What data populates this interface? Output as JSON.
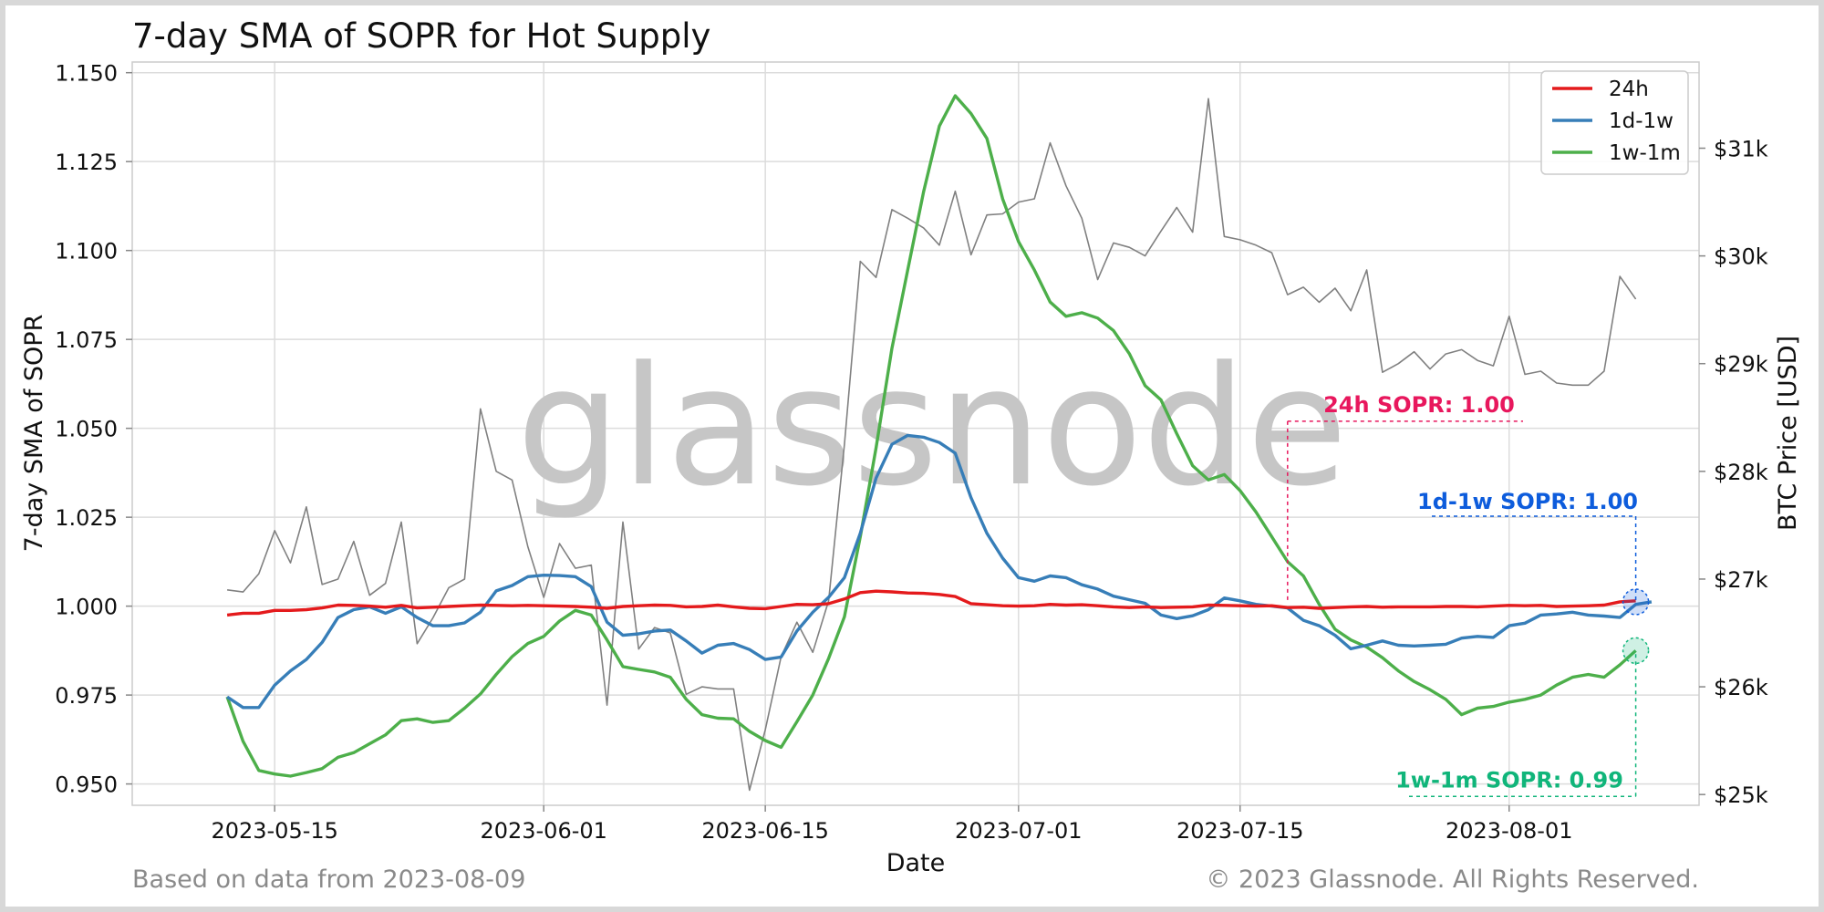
{
  "title": "7-day SMA of SOPR for Hot Supply",
  "footer_left": "Based on data from 2023-08-09",
  "footer_right": "© 2023 Glassnode. All Rights Reserved.",
  "watermark": "glassnode",
  "colors": {
    "s24h": "#e41a1c",
    "s1d1w": "#377eb8",
    "s1w1m": "#4daf4a",
    "price": "#808080",
    "annot24h": "#e8175d",
    "annot1d1w": "#0d5cdc",
    "annot1w1m": "#10b57a"
  },
  "chart_data": {
    "type": "line",
    "xlabel": "Date",
    "ylabel": "7-day SMA of SOPR",
    "ylabel_right": "BTC Price [USD]",
    "x_range": [
      "2023-05-06",
      "2023-08-13"
    ],
    "ylim": [
      0.944,
      1.153
    ],
    "ylim_right": [
      24900,
      31800
    ],
    "x_ticks": [
      "2023-05-15",
      "2023-06-01",
      "2023-06-15",
      "2023-07-01",
      "2023-07-15",
      "2023-08-01"
    ],
    "y_ticks": [
      "0.950",
      "0.975",
      "1.000",
      "1.025",
      "1.050",
      "1.075",
      "1.100",
      "1.125",
      "1.150"
    ],
    "y_right_ticks": [
      {
        "value": 25000,
        "label": "$25k"
      },
      {
        "value": 26000,
        "label": "$26k"
      },
      {
        "value": 27000,
        "label": "$27k"
      },
      {
        "value": 28000,
        "label": "$28k"
      },
      {
        "value": 29000,
        "label": "$29k"
      },
      {
        "value": 30000,
        "label": "$30k"
      },
      {
        "value": 31000,
        "label": "$31k"
      }
    ],
    "grid": true,
    "legend_position": "top-right",
    "start_date": "2023-05-12",
    "series": [
      {
        "name": "24h",
        "color": "#e41a1c",
        "axis": "left",
        "values": [
          0.9975,
          0.998,
          0.998,
          0.9988,
          0.9988,
          0.999,
          0.9995,
          1.0003,
          1.0002,
          1.0,
          0.9997,
          1.0002,
          0.9995,
          0.9997,
          0.9999,
          1.0001,
          1.0003,
          1.0002,
          1.0001,
          1.0002,
          1.0001,
          1.0,
          0.9999,
          0.9997,
          0.9994,
          0.9999,
          1.0001,
          1.0003,
          1.0002,
          0.9998,
          0.9999,
          1.0003,
          0.9998,
          0.9994,
          0.9993,
          0.9999,
          1.0005,
          1.0004,
          1.0007,
          1.002,
          1.0038,
          1.0042,
          1.004,
          1.0037,
          1.0036,
          1.0033,
          1.0027,
          1.0007,
          1.0004,
          1.0001,
          1.0,
          1.0001,
          1.0005,
          1.0003,
          1.0004,
          1.0001,
          0.9998,
          0.9996,
          0.9998,
          0.9996,
          0.9997,
          0.9998,
          1.0003,
          1.0002,
          1.0001,
          1.0,
          1.0001,
          0.9996,
          0.9997,
          0.9994,
          0.9996,
          0.9998,
          0.9999,
          0.9997,
          0.9998,
          0.9998,
          0.9998,
          0.9999,
          0.9999,
          0.9998,
          1.0,
          1.0002,
          1.0001,
          1.0002,
          0.9999,
          1.0,
          1.0001,
          1.0003,
          1.0012,
          1.0015
        ]
      },
      {
        "name": "1d-1w",
        "color": "#377eb8",
        "axis": "left",
        "values": [
          0.9745,
          0.9715,
          0.9715,
          0.9778,
          0.9818,
          0.985,
          0.9898,
          0.9968,
          0.999,
          0.9998,
          0.998,
          0.9998,
          0.9968,
          0.9945,
          0.9945,
          0.9953,
          0.9983,
          1.0043,
          1.0058,
          1.0083,
          1.0087,
          1.0086,
          1.0083,
          1.0055,
          0.9955,
          0.9918,
          0.9922,
          0.993,
          0.9933,
          0.9902,
          0.9868,
          0.989,
          0.9895,
          0.9878,
          0.985,
          0.9857,
          0.993,
          0.9983,
          1.0025,
          1.008,
          1.0205,
          1.036,
          1.0455,
          1.048,
          1.0475,
          1.046,
          1.043,
          1.0305,
          1.0205,
          1.0135,
          1.008,
          1.007,
          1.0085,
          1.008,
          1.006,
          1.0048,
          1.0028,
          1.0018,
          1.0008,
          0.9975,
          0.9965,
          0.9973,
          0.999,
          1.0023,
          1.0015,
          1.0005,
          1.0,
          0.9995,
          0.996,
          0.9945,
          0.9918,
          0.988,
          0.989,
          0.9902,
          0.989,
          0.9888,
          0.989,
          0.9893,
          0.991,
          0.9915,
          0.9912,
          0.9945,
          0.9952,
          0.9975,
          0.9978,
          0.9983,
          0.9975,
          0.9972,
          0.9968,
          1.0005,
          1.0012
        ]
      },
      {
        "name": "1w-1m",
        "color": "#4daf4a",
        "axis": "left",
        "values": [
          0.9745,
          0.962,
          0.9538,
          0.9528,
          0.9522,
          0.9532,
          0.9543,
          0.9575,
          0.9588,
          0.9613,
          0.9638,
          0.9678,
          0.9683,
          0.9673,
          0.9678,
          0.9713,
          0.9753,
          0.9808,
          0.9858,
          0.9895,
          0.9915,
          0.9958,
          0.9988,
          0.9975,
          0.9905,
          0.983,
          0.9822,
          0.9815,
          0.98,
          0.9738,
          0.9695,
          0.9685,
          0.9683,
          0.9648,
          0.9622,
          0.9603,
          0.9675,
          0.975,
          0.9853,
          0.997,
          1.0195,
          1.0445,
          1.0725,
          1.0945,
          1.1165,
          1.135,
          1.1435,
          1.1385,
          1.1315,
          1.1145,
          1.1025,
          1.0945,
          1.0855,
          1.0815,
          1.0825,
          1.081,
          1.0775,
          1.071,
          1.062,
          1.058,
          1.0485,
          1.0395,
          1.0355,
          1.037,
          1.0325,
          1.0265,
          1.0195,
          1.0125,
          1.0085,
          1.0005,
          0.9935,
          0.9905,
          0.9885,
          0.9855,
          0.9818,
          0.9788,
          0.9765,
          0.9738,
          0.9695,
          0.9713,
          0.9718,
          0.973,
          0.9738,
          0.975,
          0.9778,
          0.98,
          0.9808,
          0.98,
          0.9835,
          0.9875
        ]
      },
      {
        "name": "BTC Price",
        "color": "#808080",
        "axis": "right",
        "values": [
          26900,
          26880,
          27050,
          27450,
          27150,
          27670,
          26950,
          27000,
          27350,
          26850,
          26960,
          27530,
          26400,
          26640,
          26920,
          27000,
          28580,
          28000,
          27920,
          27300,
          26830,
          27330,
          27100,
          27130,
          25830,
          27530,
          26350,
          26550,
          26500,
          25930,
          26000,
          25980,
          25980,
          25040,
          25600,
          26280,
          26600,
          26320,
          26800,
          28250,
          29950,
          29800,
          30430,
          30350,
          30260,
          30100,
          30600,
          30010,
          30380,
          30390,
          30500,
          30530,
          31050,
          30650,
          30350,
          29780,
          30120,
          30080,
          30000,
          30230,
          30450,
          30220,
          31460,
          30180,
          30150,
          30100,
          30030,
          29640,
          29710,
          29570,
          29700,
          29490,
          29870,
          28920,
          29000,
          29110,
          28950,
          29090,
          29130,
          29030,
          28980,
          29440,
          28900,
          28930,
          28820,
          28800,
          28800,
          28930,
          29810,
          29600
        ]
      }
    ],
    "annotations": [
      {
        "label": "24h SOPR: 1.00",
        "value": 1.0015
      },
      {
        "label": "1d-1w SOPR: 1.00",
        "value": 1.0012
      },
      {
        "label": "1w-1m SOPR: 0.99",
        "value": 0.9875
      }
    ]
  }
}
